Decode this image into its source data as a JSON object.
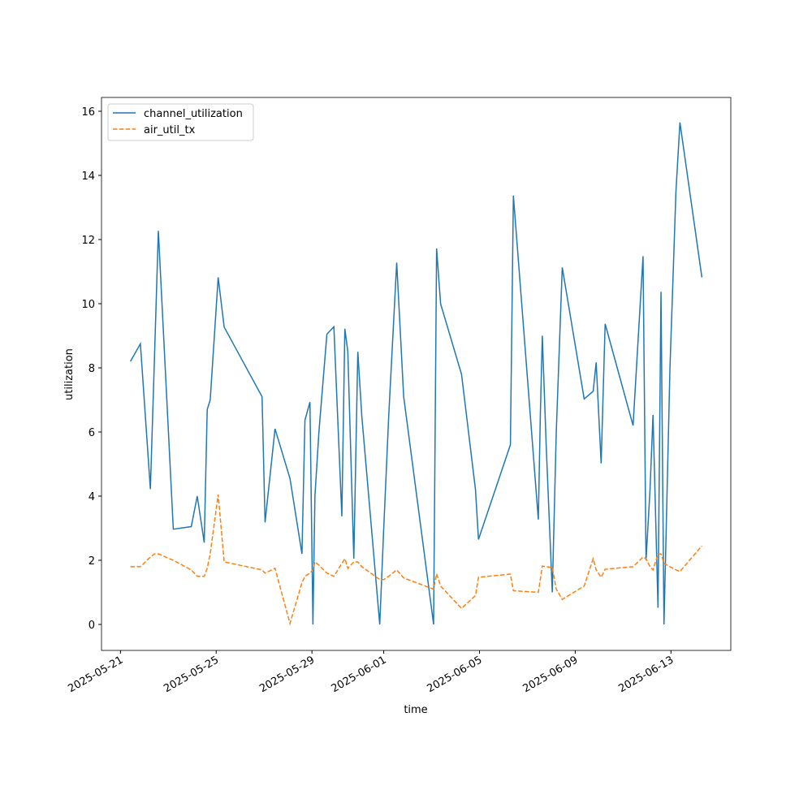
{
  "chart_data": {
    "type": "line",
    "xlabel": "time",
    "ylabel": "utilization",
    "x": [
      "2025-05-21T10:00",
      "2025-05-21T20:00",
      "2025-05-22T06:00",
      "2025-05-22T10:00",
      "2025-05-22T14:00",
      "2025-05-23T05:00",
      "2025-05-23T23:00",
      "2025-05-24T05:00",
      "2025-05-24T12:00",
      "2025-05-24T15:00",
      "2025-05-24T18:00",
      "2025-05-25T02:00",
      "2025-05-25T08:00",
      "2025-05-26T22:00",
      "2025-05-27T01:00",
      "2025-05-27T11:00",
      "2025-05-28T02:00",
      "2025-05-28T14:00",
      "2025-05-28T17:00",
      "2025-05-28T22:00",
      "2025-05-29T01:00",
      "2025-05-29T03:00",
      "2025-05-29T07:00",
      "2025-05-29T15:00",
      "2025-05-29T22:00",
      "2025-05-30T06:00",
      "2025-05-30T09:00",
      "2025-05-30T12:00",
      "2025-05-30T18:00",
      "2025-05-30T22:00",
      "2025-05-31T02:00",
      "2025-05-31T20:00",
      "2025-06-01T00:00",
      "2025-06-01T05:00",
      "2025-06-01T13:00",
      "2025-06-01T20:00",
      "2025-06-03T02:00",
      "2025-06-03T05:00",
      "2025-06-03T09:00",
      "2025-06-04T06:00",
      "2025-06-04T20:00",
      "2025-06-04T23:00",
      "2025-06-06T07:00",
      "2025-06-06T10:00",
      "2025-06-07T11:00",
      "2025-06-07T13:00",
      "2025-06-07T15:00",
      "2025-06-07T19:00",
      "2025-06-08T01:00",
      "2025-06-08T05:00",
      "2025-06-08T11:00",
      "2025-06-09T09:00",
      "2025-06-09T18:00",
      "2025-06-09T21:00",
      "2025-06-10T02:00",
      "2025-06-10T06:00",
      "2025-06-11T10:00",
      "2025-06-11T20:00",
      "2025-06-11T23:00",
      "2025-06-12T03:00",
      "2025-06-12T06:00",
      "2025-06-12T11:00",
      "2025-06-12T14:00",
      "2025-06-12T17:00",
      "2025-06-12T23:00",
      "2025-06-13T05:00",
      "2025-06-13T09:00",
      "2025-06-14T07:00"
    ],
    "series": [
      {
        "name": "channel_utilization",
        "color": "#1f77b4",
        "dashed": false,
        "values": [
          8.2,
          8.75,
          4.22,
          8.2,
          12.27,
          2.97,
          3.05,
          4.0,
          2.55,
          6.7,
          7.0,
          10.82,
          9.27,
          7.1,
          3.18,
          6.1,
          4.55,
          2.2,
          6.37,
          6.93,
          0,
          4.0,
          6.0,
          9.05,
          9.28,
          3.37,
          9.22,
          8.5,
          2.05,
          8.5,
          6.5,
          0,
          3.0,
          6.5,
          11.28,
          7.1,
          0,
          11.72,
          10.0,
          7.8,
          4.2,
          2.65,
          5.6,
          13.37,
          3.27,
          6.5,
          9.0,
          5.5,
          1.0,
          6.0,
          11.13,
          7.03,
          7.27,
          8.17,
          5.02,
          9.37,
          6.2,
          11.48,
          2.0,
          4.2,
          6.53,
          0.52,
          10.37,
          0,
          8.0,
          13.5,
          15.65,
          10.82
        ]
      },
      {
        "name": "air_util_tx",
        "color": "#ff7f0e",
        "dashed": true,
        "values": [
          1.8,
          1.8,
          2.1,
          2.2,
          2.2,
          2.0,
          1.7,
          1.5,
          1.5,
          1.75,
          2.2,
          4.05,
          1.95,
          1.7,
          1.6,
          1.75,
          0.03,
          1.3,
          1.5,
          1.6,
          1.7,
          1.95,
          1.85,
          1.6,
          1.5,
          1.9,
          2.05,
          1.75,
          1.95,
          1.95,
          1.8,
          1.4,
          1.4,
          1.5,
          1.7,
          1.45,
          1.1,
          1.58,
          1.2,
          0.5,
          0.9,
          1.47,
          1.57,
          1.05,
          1.0,
          1.4,
          1.82,
          1.8,
          1.78,
          1.1,
          0.78,
          1.2,
          2.05,
          1.7,
          1.47,
          1.72,
          1.8,
          2.1,
          2.05,
          1.8,
          1.7,
          2.2,
          2.2,
          1.9,
          1.8,
          1.7,
          1.65,
          2.45
        ]
      }
    ],
    "xlim": [
      "2025-05-20T05:00",
      "2025-06-15T12:00"
    ],
    "xticks": [
      "2025-05-21",
      "2025-05-25",
      "2025-05-29",
      "2025-06-01",
      "2025-06-05",
      "2025-06-09",
      "2025-06-13"
    ],
    "ylim": [
      -0.81,
      16.43
    ],
    "yticks": [
      0,
      2,
      4,
      6,
      8,
      10,
      12,
      14,
      16
    ],
    "grid": false,
    "legend": "upper left"
  }
}
